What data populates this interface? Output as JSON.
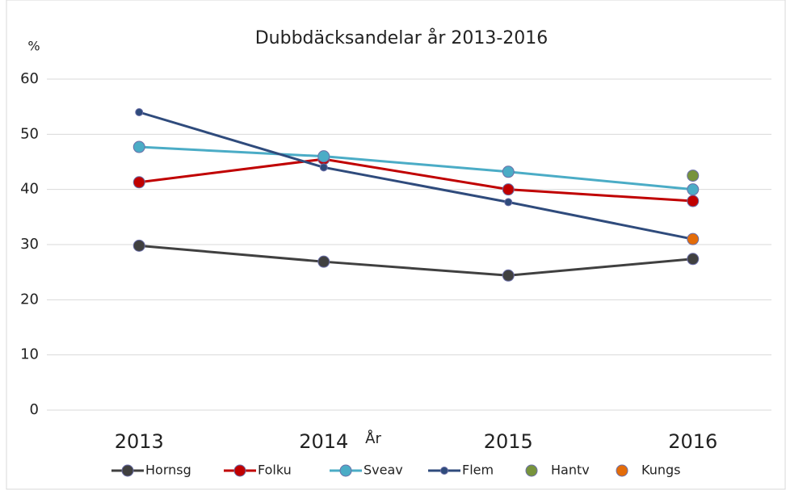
{
  "chart_data": {
    "type": "line",
    "title": "Dubbdäcksandelar år 2013-2016",
    "y_label": "%",
    "x_label": "År",
    "categories": [
      "2013",
      "2014",
      "2015",
      "2016"
    ],
    "series": [
      {
        "name": "Hornsg",
        "color": "#404040",
        "values": [
          29.8,
          26.9,
          24.4,
          27.4
        ]
      },
      {
        "name": "Folku",
        "color": "#c00000",
        "values": [
          41.3,
          45.5,
          40.0,
          37.9
        ]
      },
      {
        "name": "Sveav",
        "color": "#4bacc6",
        "values": [
          47.7,
          46.0,
          43.2,
          40.0
        ]
      },
      {
        "name": "Flem",
        "color": "#2f4b7c",
        "values": [
          54.0,
          44.0,
          37.7,
          31.0
        ]
      },
      {
        "name": "Hantv",
        "color": "#77933c",
        "values": [
          null,
          null,
          null,
          42.5
        ]
      },
      {
        "name": "Kungs",
        "color": "#e36c09",
        "values": [
          null,
          null,
          null,
          31.0
        ]
      }
    ],
    "ylim": [
      0,
      60
    ],
    "yticks": [
      0,
      10,
      20,
      30,
      40,
      50,
      60
    ],
    "grid": true,
    "legend": "bottom"
  }
}
